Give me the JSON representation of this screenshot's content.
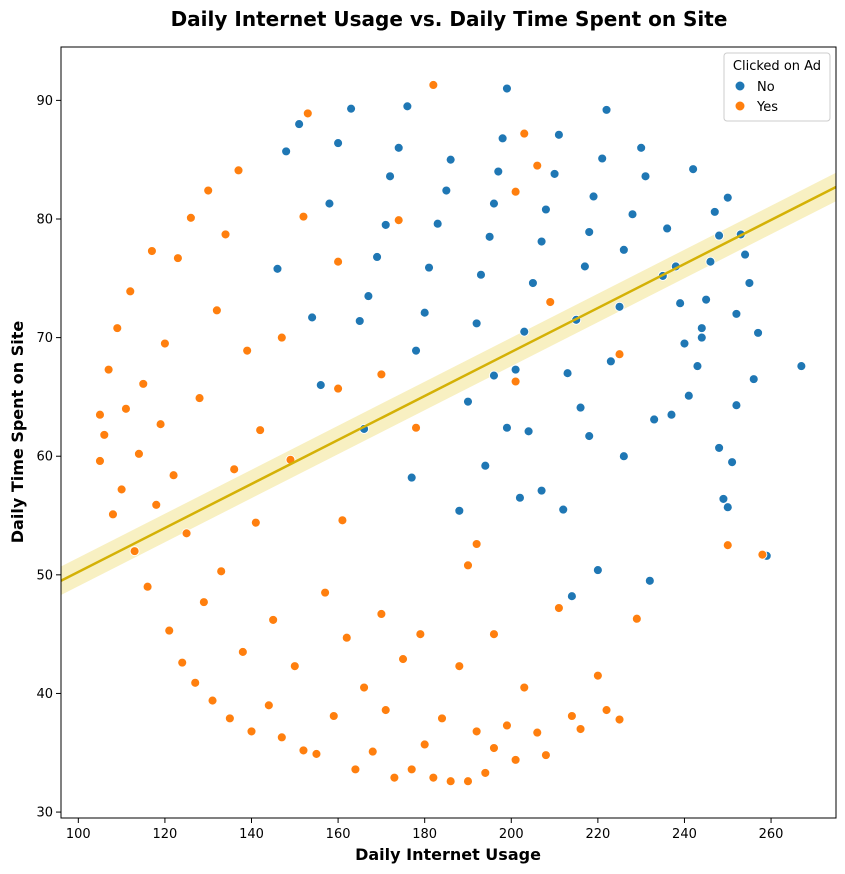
{
  "chart_data": {
    "type": "scatter",
    "title": "Daily Internet Usage vs. Daily Time Spent on Site",
    "xlabel": "Daily Internet Usage",
    "ylabel": "Daily Time Spent on Site",
    "xlim": [
      96,
      275
    ],
    "ylim": [
      29.5,
      94.5
    ],
    "xticks": [
      100,
      120,
      140,
      160,
      180,
      200,
      220,
      240,
      260
    ],
    "yticks": [
      30,
      40,
      50,
      60,
      70,
      80,
      90
    ],
    "grid": false,
    "legend": {
      "title": "Clicked on Ad",
      "placement": "top-right",
      "entries": [
        {
          "label": "No",
          "color": "#1f77b4"
        },
        {
          "label": "Yes",
          "color": "#ff7f0e"
        }
      ]
    },
    "regression_line": {
      "color": "#d4b106",
      "band_color": "#f5e9a8",
      "x": [
        96,
        275
      ],
      "y": [
        49.5,
        82.7
      ],
      "ci_halfwidth_at_ends": 1.2
    },
    "series": [
      {
        "name": "No",
        "color": "#1f77b4",
        "points": [
          [
            267,
            67.6
          ],
          [
            259,
            51.6
          ],
          [
            257,
            70.4
          ],
          [
            256,
            66.5
          ],
          [
            255,
            74.6
          ],
          [
            254,
            77.0
          ],
          [
            253,
            78.7
          ],
          [
            252,
            72.0
          ],
          [
            250,
            55.7
          ],
          [
            249,
            56.4
          ],
          [
            248,
            60.7
          ],
          [
            251,
            59.5
          ],
          [
            248,
            78.6
          ],
          [
            250,
            81.8
          ],
          [
            247,
            80.6
          ],
          [
            246,
            76.4
          ],
          [
            245,
            73.2
          ],
          [
            244,
            70.8
          ],
          [
            243,
            67.6
          ],
          [
            241,
            65.1
          ],
          [
            240,
            69.5
          ],
          [
            239,
            72.9
          ],
          [
            238,
            76.0
          ],
          [
            236,
            79.2
          ],
          [
            235,
            75.2
          ],
          [
            233,
            63.1
          ],
          [
            231,
            83.6
          ],
          [
            230,
            86.0
          ],
          [
            228,
            80.4
          ],
          [
            226,
            77.4
          ],
          [
            225,
            72.6
          ],
          [
            223,
            68.0
          ],
          [
            222,
            89.2
          ],
          [
            221,
            85.1
          ],
          [
            219,
            81.9
          ],
          [
            218,
            78.9
          ],
          [
            217,
            76.0
          ],
          [
            215,
            71.5
          ],
          [
            216,
            64.1
          ],
          [
            213,
            67.0
          ],
          [
            211,
            87.1
          ],
          [
            210,
            83.8
          ],
          [
            208,
            80.8
          ],
          [
            207,
            78.1
          ],
          [
            205,
            74.6
          ],
          [
            203,
            70.5
          ],
          [
            201,
            67.3
          ],
          [
            199,
            91.0
          ],
          [
            198,
            86.8
          ],
          [
            197,
            84.0
          ],
          [
            196,
            81.3
          ],
          [
            195,
            78.5
          ],
          [
            193,
            75.3
          ],
          [
            192,
            71.2
          ],
          [
            190,
            64.6
          ],
          [
            188,
            55.4
          ],
          [
            186,
            85.0
          ],
          [
            185,
            82.4
          ],
          [
            183,
            79.6
          ],
          [
            181,
            75.9
          ],
          [
            180,
            72.1
          ],
          [
            178,
            68.9
          ],
          [
            176,
            89.5
          ],
          [
            174,
            86.0
          ],
          [
            172,
            83.6
          ],
          [
            171,
            79.5
          ],
          [
            169,
            76.8
          ],
          [
            167,
            73.5
          ],
          [
            165,
            71.4
          ],
          [
            163,
            89.3
          ],
          [
            160,
            86.4
          ],
          [
            158,
            81.3
          ],
          [
            156,
            66.0
          ],
          [
            154,
            71.7
          ],
          [
            151,
            88.0
          ],
          [
            148,
            85.7
          ],
          [
            146,
            75.8
          ],
          [
            166,
            62.3
          ],
          [
            177,
            58.2
          ],
          [
            194,
            59.2
          ],
          [
            202,
            56.5
          ],
          [
            207,
            57.1
          ],
          [
            212,
            55.5
          ],
          [
            214,
            48.2
          ],
          [
            220,
            50.4
          ],
          [
            232,
            49.5
          ],
          [
            196,
            66.8
          ],
          [
            199,
            62.4
          ],
          [
            204,
            62.1
          ],
          [
            226,
            60.0
          ],
          [
            218,
            61.7
          ],
          [
            237,
            63.5
          ],
          [
            242,
            84.2
          ],
          [
            244,
            70.0
          ],
          [
            252,
            64.3
          ]
        ]
      },
      {
        "name": "Yes",
        "color": "#ff7f0e",
        "points": [
          [
            105,
            63.5
          ],
          [
            105,
            59.6
          ],
          [
            106,
            61.8
          ],
          [
            107,
            67.3
          ],
          [
            108,
            55.1
          ],
          [
            109,
            70.8
          ],
          [
            110,
            57.2
          ],
          [
            111,
            64.0
          ],
          [
            112,
            73.9
          ],
          [
            113,
            52.0
          ],
          [
            114,
            60.2
          ],
          [
            115,
            66.1
          ],
          [
            116,
            49.0
          ],
          [
            117,
            77.3
          ],
          [
            118,
            55.9
          ],
          [
            119,
            62.7
          ],
          [
            120,
            69.5
          ],
          [
            121,
            45.3
          ],
          [
            122,
            58.4
          ],
          [
            123,
            76.7
          ],
          [
            124,
            42.6
          ],
          [
            125,
            53.5
          ],
          [
            126,
            80.1
          ],
          [
            127,
            40.9
          ],
          [
            128,
            64.9
          ],
          [
            129,
            47.7
          ],
          [
            130,
            82.4
          ],
          [
            131,
            39.4
          ],
          [
            132,
            72.3
          ],
          [
            133,
            50.3
          ],
          [
            134,
            78.7
          ],
          [
            135,
            37.9
          ],
          [
            136,
            58.9
          ],
          [
            137,
            84.1
          ],
          [
            138,
            43.5
          ],
          [
            139,
            68.9
          ],
          [
            140,
            36.8
          ],
          [
            141,
            54.4
          ],
          [
            142,
            62.2
          ],
          [
            144,
            39.0
          ],
          [
            145,
            46.2
          ],
          [
            147,
            36.3
          ],
          [
            149,
            59.7
          ],
          [
            150,
            42.3
          ],
          [
            152,
            35.2
          ],
          [
            153,
            88.9
          ],
          [
            155,
            34.9
          ],
          [
            157,
            48.5
          ],
          [
            159,
            38.1
          ],
          [
            161,
            54.6
          ],
          [
            162,
            44.7
          ],
          [
            164,
            33.6
          ],
          [
            166,
            40.5
          ],
          [
            168,
            35.1
          ],
          [
            170,
            46.7
          ],
          [
            171,
            38.6
          ],
          [
            173,
            32.9
          ],
          [
            175,
            42.9
          ],
          [
            177,
            33.6
          ],
          [
            179,
            45.0
          ],
          [
            180,
            35.7
          ],
          [
            182,
            32.9
          ],
          [
            184,
            37.9
          ],
          [
            186,
            32.6
          ],
          [
            188,
            42.3
          ],
          [
            190,
            32.6
          ],
          [
            192,
            36.8
          ],
          [
            194,
            33.3
          ],
          [
            196,
            35.4
          ],
          [
            199,
            37.3
          ],
          [
            201,
            34.4
          ],
          [
            203,
            40.5
          ],
          [
            206,
            36.7
          ],
          [
            208,
            34.8
          ],
          [
            214,
            38.1
          ],
          [
            216,
            37.0
          ],
          [
            220,
            41.5
          ],
          [
            222,
            38.6
          ],
          [
            225,
            37.8
          ],
          [
            229,
            46.3
          ],
          [
            250,
            52.5
          ],
          [
            258,
            51.7
          ],
          [
            182,
            91.3
          ],
          [
            203,
            87.2
          ],
          [
            201,
            82.3
          ],
          [
            206,
            84.5
          ],
          [
            174,
            79.9
          ],
          [
            160,
            76.4
          ],
          [
            152,
            80.2
          ],
          [
            147,
            70.0
          ],
          [
            160,
            65.7
          ],
          [
            170,
            66.9
          ],
          [
            178,
            62.4
          ],
          [
            192,
            52.6
          ],
          [
            190,
            50.8
          ],
          [
            196,
            45.0
          ],
          [
            211,
            47.2
          ],
          [
            201,
            66.3
          ],
          [
            209,
            73.0
          ],
          [
            225,
            68.6
          ]
        ]
      }
    ]
  }
}
